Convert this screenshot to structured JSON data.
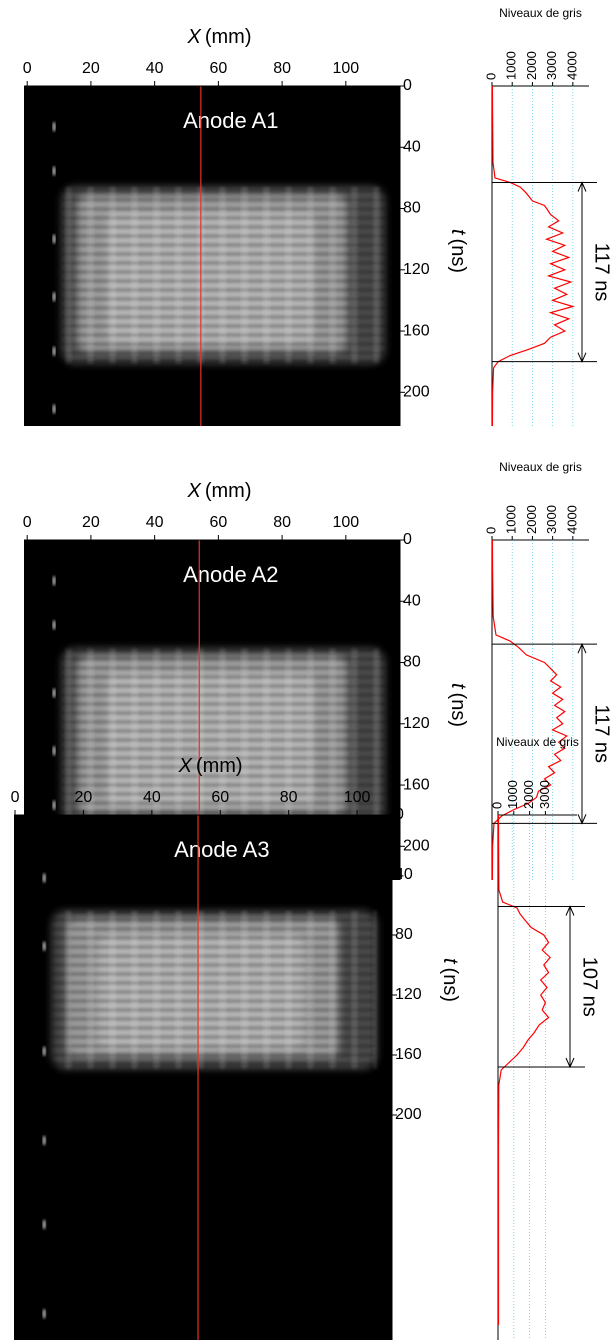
{
  "chart_data": [
    {
      "type": "streak",
      "title": "Anode A1",
      "xlabel": {
        "symbol": "X",
        "unit": "(mm)"
      },
      "ylabel": {
        "symbol": "t",
        "unit": "(ns)"
      },
      "xlim": [
        -1,
        117
      ],
      "xticks": [
        0,
        20,
        40,
        60,
        80,
        100
      ],
      "ylim": [
        0,
        222
      ],
      "yticks": [
        0,
        40,
        80,
        120,
        160,
        200
      ],
      "cursor_x": 54.5,
      "cursor_color": "#e8302a",
      "profile": {
        "type": "line",
        "xlabel": "Niveaux de gris",
        "xlim": [
          0,
          4800
        ],
        "xticks": [
          0,
          1000,
          2000,
          3000,
          4000
        ],
        "grid": true,
        "color": "#ff0000",
        "t": [
          0,
          20,
          50,
          60,
          63,
          66,
          70,
          75,
          78,
          80,
          84,
          88,
          92,
          96,
          100,
          104,
          108,
          112,
          116,
          120,
          124,
          128,
          132,
          136,
          140,
          144,
          148,
          152,
          156,
          160,
          164,
          168,
          172,
          176,
          180,
          184,
          200,
          222
        ],
        "values": [
          20,
          30,
          50,
          150,
          900,
          1400,
          1700,
          2000,
          2600,
          2700,
          2900,
          3300,
          2800,
          3500,
          2700,
          3600,
          3000,
          3800,
          2900,
          3600,
          2800,
          3900,
          3100,
          3700,
          3000,
          4000,
          2900,
          3800,
          3100,
          3600,
          2900,
          2600,
          1800,
          900,
          300,
          80,
          30,
          20
        ],
        "bounds": [
          63,
          180
        ],
        "duration": {
          "value": 117,
          "label": "117 ns"
        }
      }
    },
    {
      "type": "streak",
      "title": "Anode A2",
      "xlabel": {
        "symbol": "X",
        "unit": "(mm)"
      },
      "ylabel": {
        "symbol": "t",
        "unit": "(ns)"
      },
      "xlim": [
        -1,
        117
      ],
      "xticks": [
        0,
        20,
        40,
        60,
        80,
        100
      ],
      "ylim": [
        0,
        222
      ],
      "yticks": [
        0,
        40,
        80,
        120,
        160,
        200
      ],
      "cursor_x": 54,
      "cursor_color": "#e8302a",
      "profile": {
        "type": "line",
        "xlabel": "Niveaux de gris",
        "xlim": [
          0,
          4800
        ],
        "xticks": [
          0,
          1000,
          2000,
          3000,
          4000
        ],
        "grid": true,
        "color": "#ff0000",
        "t": [
          0,
          20,
          50,
          62,
          66,
          70,
          75,
          80,
          84,
          88,
          92,
          96,
          100,
          104,
          108,
          112,
          116,
          120,
          124,
          128,
          132,
          136,
          140,
          144,
          148,
          152,
          156,
          160,
          164,
          168,
          172,
          176,
          180,
          185,
          200,
          222
        ],
        "values": [
          20,
          30,
          60,
          200,
          900,
          1300,
          1700,
          2600,
          2900,
          3200,
          2900,
          3400,
          3000,
          3500,
          3100,
          3600,
          3200,
          3500,
          3000,
          3700,
          3300,
          3600,
          3100,
          3400,
          2800,
          3100,
          2600,
          2900,
          2300,
          2200,
          1800,
          1100,
          500,
          100,
          30,
          20
        ],
        "bounds": [
          68,
          185
        ],
        "duration": {
          "value": 117,
          "label": "117 ns"
        }
      }
    },
    {
      "type": "streak",
      "title": "Anode A3",
      "xlabel": {
        "symbol": "X",
        "unit": "(mm)"
      },
      "ylabel": {
        "symbol": "t",
        "unit": "(ns)"
      },
      "xlim": [
        -0.3,
        110.2
      ],
      "xticks": [
        0,
        20,
        40,
        60,
        80,
        100
      ],
      "ylim": [
        0,
        350
      ],
      "yticks": [
        0,
        40,
        80,
        120,
        160,
        200
      ],
      "cursor_x": 53.5,
      "cursor_color": "#e8302a",
      "profile": {
        "type": "line",
        "xlabel": "Niveaux de gris",
        "xlim": [
          0,
          5000
        ],
        "xticks": [
          0,
          1000,
          2000,
          3000
        ],
        "grid": true,
        "color": "#ff0000",
        "t": [
          0,
          20,
          50,
          58,
          62,
          66,
          70,
          75,
          80,
          85,
          90,
          95,
          100,
          105,
          110,
          115,
          120,
          125,
          130,
          135,
          140,
          145,
          150,
          155,
          160,
          165,
          170,
          180,
          220,
          280,
          340
        ],
        "values": [
          30,
          40,
          60,
          300,
          1200,
          1400,
          1700,
          2100,
          2900,
          3200,
          2800,
          3300,
          2900,
          3200,
          2700,
          3100,
          2700,
          3000,
          2800,
          3200,
          2600,
          2300,
          1900,
          1600,
          1200,
          700,
          200,
          50,
          30,
          30,
          30
        ],
        "bounds": [
          61,
          168
        ],
        "duration": {
          "value": 107,
          "label": "107 ns"
        }
      }
    }
  ]
}
